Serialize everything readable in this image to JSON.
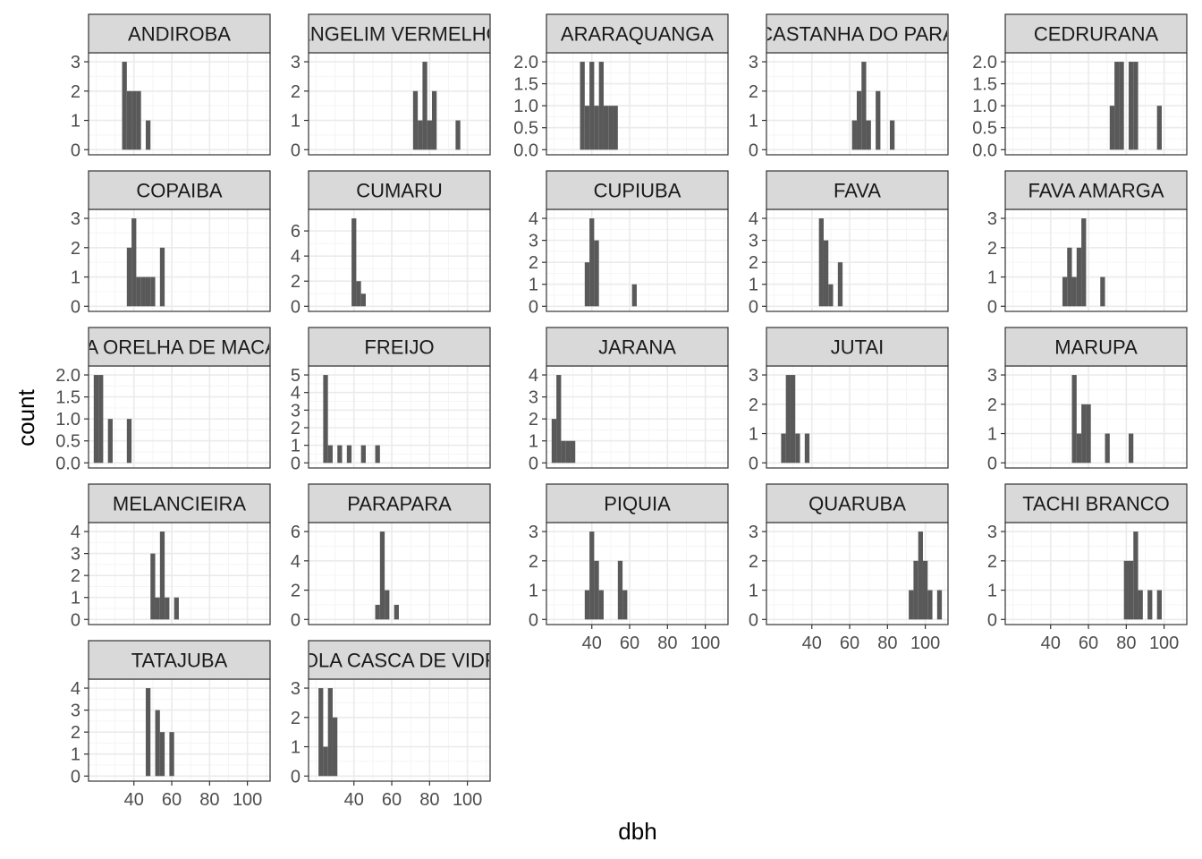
{
  "chart_data": {
    "type": "bar",
    "chart_kind": "faceted-histogram",
    "xlabel": "dbh",
    "ylabel": "count",
    "facet_columns": 5,
    "scales": "free_y",
    "xlim": [
      16,
      112
    ],
    "x_ticks": [
      40,
      60,
      80,
      100
    ],
    "x_tick_labels": [
      "40",
      "60",
      "80",
      "100"
    ],
    "bin_width": 2.5,
    "colors": {
      "bar": "#595959",
      "panel_border": "#333333",
      "strip_fill": "#d9d9d9",
      "grid_major": "#ebebeb",
      "grid_minor": "#f5f5f5"
    },
    "facets": [
      {
        "name": "ANDIROBA",
        "y_ticks": [
          0,
          1,
          2,
          3
        ],
        "y_tick_labels": [
          "0",
          "1",
          "2",
          "3"
        ],
        "ylim": [
          0,
          3.15
        ],
        "bins": [
          {
            "x": 35,
            "count": 3
          },
          {
            "x": 37.5,
            "count": 2
          },
          {
            "x": 40,
            "count": 2
          },
          {
            "x": 42.5,
            "count": 2
          },
          {
            "x": 47.5,
            "count": 1
          }
        ]
      },
      {
        "name": "ANGELIM VERMELHO",
        "y_ticks": [
          0,
          1,
          2,
          3
        ],
        "y_tick_labels": [
          "0",
          "1",
          "2",
          "3"
        ],
        "ylim": [
          0,
          3.15
        ],
        "bins": [
          {
            "x": 72.5,
            "count": 2
          },
          {
            "x": 75,
            "count": 1
          },
          {
            "x": 77.5,
            "count": 3
          },
          {
            "x": 80,
            "count": 1
          },
          {
            "x": 82.5,
            "count": 2
          },
          {
            "x": 95,
            "count": 1
          }
        ]
      },
      {
        "name": "ARARAQUANGA",
        "y_ticks": [
          0,
          0.5,
          1,
          1.5,
          2
        ],
        "y_tick_labels": [
          "0.0",
          "0.5",
          "1.0",
          "1.5",
          "2.0"
        ],
        "ylim": [
          0,
          2.1
        ],
        "bins": [
          {
            "x": 35,
            "count": 2
          },
          {
            "x": 37.5,
            "count": 1
          },
          {
            "x": 40,
            "count": 2
          },
          {
            "x": 42.5,
            "count": 1
          },
          {
            "x": 45,
            "count": 2
          },
          {
            "x": 47.5,
            "count": 1
          },
          {
            "x": 50,
            "count": 1
          },
          {
            "x": 52.5,
            "count": 1
          }
        ]
      },
      {
        "name": "CASTANHA DO PARA",
        "y_ticks": [
          0,
          1,
          2,
          3
        ],
        "y_tick_labels": [
          "0",
          "1",
          "2",
          "3"
        ],
        "ylim": [
          0,
          3.15
        ],
        "bins": [
          {
            "x": 62.5,
            "count": 1
          },
          {
            "x": 65,
            "count": 2
          },
          {
            "x": 67.5,
            "count": 3
          },
          {
            "x": 70,
            "count": 1
          },
          {
            "x": 75,
            "count": 2
          },
          {
            "x": 82.5,
            "count": 1
          }
        ]
      },
      {
        "name": "CEDRURANA",
        "y_ticks": [
          0,
          0.5,
          1,
          1.5,
          2
        ],
        "y_tick_labels": [
          "0.0",
          "0.5",
          "1.0",
          "1.5",
          "2.0"
        ],
        "ylim": [
          0,
          2.1
        ],
        "bins": [
          {
            "x": 72.5,
            "count": 1
          },
          {
            "x": 75,
            "count": 2
          },
          {
            "x": 77.5,
            "count": 2
          },
          {
            "x": 82.5,
            "count": 2
          },
          {
            "x": 85,
            "count": 2
          },
          {
            "x": 97.5,
            "count": 1
          }
        ]
      },
      {
        "name": "COPAIBA",
        "y_ticks": [
          0,
          1,
          2,
          3
        ],
        "y_tick_labels": [
          "0",
          "1",
          "2",
          "3"
        ],
        "ylim": [
          0,
          3.15
        ],
        "bins": [
          {
            "x": 37.5,
            "count": 2
          },
          {
            "x": 40,
            "count": 3
          },
          {
            "x": 42.5,
            "count": 1
          },
          {
            "x": 45,
            "count": 1
          },
          {
            "x": 47.5,
            "count": 1
          },
          {
            "x": 50,
            "count": 1
          },
          {
            "x": 55,
            "count": 2
          }
        ]
      },
      {
        "name": "CUMARU",
        "y_ticks": [
          0,
          2,
          4,
          6
        ],
        "y_tick_labels": [
          "0",
          "2",
          "4",
          "6"
        ],
        "ylim": [
          0,
          7.35
        ],
        "bins": [
          {
            "x": 40,
            "count": 7
          },
          {
            "x": 42.5,
            "count": 2
          },
          {
            "x": 45,
            "count": 1
          }
        ]
      },
      {
        "name": "CUPIUBA",
        "y_ticks": [
          0,
          1,
          2,
          3,
          4
        ],
        "y_tick_labels": [
          "0",
          "1",
          "2",
          "3",
          "4"
        ],
        "ylim": [
          0,
          4.2
        ],
        "bins": [
          {
            "x": 37.5,
            "count": 2
          },
          {
            "x": 40,
            "count": 4
          },
          {
            "x": 42.5,
            "count": 3
          },
          {
            "x": 62.5,
            "count": 1
          }
        ]
      },
      {
        "name": "FAVA",
        "y_ticks": [
          0,
          1,
          2,
          3,
          4
        ],
        "y_tick_labels": [
          "0",
          "1",
          "2",
          "3",
          "4"
        ],
        "ylim": [
          0,
          4.2
        ],
        "bins": [
          {
            "x": 45,
            "count": 4
          },
          {
            "x": 47.5,
            "count": 3
          },
          {
            "x": 50,
            "count": 1
          },
          {
            "x": 55,
            "count": 2
          }
        ]
      },
      {
        "name": "FAVA AMARGA",
        "y_ticks": [
          0,
          1,
          2,
          3
        ],
        "y_tick_labels": [
          "0",
          "1",
          "2",
          "3"
        ],
        "ylim": [
          0,
          3.15
        ],
        "bins": [
          {
            "x": 47.5,
            "count": 1
          },
          {
            "x": 50,
            "count": 2
          },
          {
            "x": 52.5,
            "count": 1
          },
          {
            "x": 55,
            "count": 2
          },
          {
            "x": 57.5,
            "count": 3
          },
          {
            "x": 67.5,
            "count": 1
          }
        ]
      },
      {
        "name": "FAVA ORELHA DE MACACO",
        "y_ticks": [
          0,
          0.5,
          1,
          1.5,
          2
        ],
        "y_tick_labels": [
          "0.0",
          "0.5",
          "1.0",
          "1.5",
          "2.0"
        ],
        "ylim": [
          0,
          2.1
        ],
        "bins": [
          {
            "x": 20,
            "count": 2
          },
          {
            "x": 22.5,
            "count": 2
          },
          {
            "x": 27.5,
            "count": 1
          },
          {
            "x": 37.5,
            "count": 1
          }
        ]
      },
      {
        "name": "FREIJO",
        "y_ticks": [
          0,
          1,
          2,
          3,
          4,
          5
        ],
        "y_tick_labels": [
          "0",
          "1",
          "2",
          "3",
          "4",
          "5"
        ],
        "ylim": [
          0,
          5.25
        ],
        "bins": [
          {
            "x": 25,
            "count": 5
          },
          {
            "x": 27.5,
            "count": 1
          },
          {
            "x": 32.5,
            "count": 1
          },
          {
            "x": 37.5,
            "count": 1
          },
          {
            "x": 45,
            "count": 1
          },
          {
            "x": 52.5,
            "count": 1
          }
        ]
      },
      {
        "name": "JARANA",
        "y_ticks": [
          0,
          1,
          2,
          3,
          4
        ],
        "y_tick_labels": [
          "0",
          "1",
          "2",
          "3",
          "4"
        ],
        "ylim": [
          0,
          4.2
        ],
        "bins": [
          {
            "x": 20,
            "count": 2
          },
          {
            "x": 22.5,
            "count": 4
          },
          {
            "x": 25,
            "count": 1
          },
          {
            "x": 27.5,
            "count": 1
          },
          {
            "x": 30,
            "count": 1
          }
        ]
      },
      {
        "name": "JUTAI",
        "y_ticks": [
          0,
          1,
          2,
          3
        ],
        "y_tick_labels": [
          "0",
          "1",
          "2",
          "3"
        ],
        "ylim": [
          0,
          3.15
        ],
        "bins": [
          {
            "x": 25,
            "count": 1
          },
          {
            "x": 27.5,
            "count": 3
          },
          {
            "x": 30,
            "count": 3
          },
          {
            "x": 32.5,
            "count": 1
          },
          {
            "x": 37.5,
            "count": 1
          }
        ]
      },
      {
        "name": "MARUPA",
        "y_ticks": [
          0,
          1,
          2,
          3
        ],
        "y_tick_labels": [
          "0",
          "1",
          "2",
          "3"
        ],
        "ylim": [
          0,
          3.15
        ],
        "bins": [
          {
            "x": 52.5,
            "count": 3
          },
          {
            "x": 55,
            "count": 1
          },
          {
            "x": 57.5,
            "count": 2
          },
          {
            "x": 60,
            "count": 2
          },
          {
            "x": 70,
            "count": 1
          },
          {
            "x": 82.5,
            "count": 1
          }
        ]
      },
      {
        "name": "MELANCIEIRA",
        "y_ticks": [
          0,
          1,
          2,
          3,
          4
        ],
        "y_tick_labels": [
          "0",
          "1",
          "2",
          "3",
          "4"
        ],
        "ylim": [
          0,
          4.2
        ],
        "bins": [
          {
            "x": 50,
            "count": 3
          },
          {
            "x": 52.5,
            "count": 1
          },
          {
            "x": 55,
            "count": 4
          },
          {
            "x": 57.5,
            "count": 1
          },
          {
            "x": 62.5,
            "count": 1
          }
        ]
      },
      {
        "name": "PARAPARA",
        "y_ticks": [
          0,
          2,
          4,
          6
        ],
        "y_tick_labels": [
          "0",
          "2",
          "4",
          "6"
        ],
        "ylim": [
          0,
          6.3
        ],
        "bins": [
          {
            "x": 52.5,
            "count": 1
          },
          {
            "x": 55,
            "count": 6
          },
          {
            "x": 57.5,
            "count": 2
          },
          {
            "x": 62.5,
            "count": 1
          }
        ]
      },
      {
        "name": "PIQUIA",
        "y_ticks": [
          0,
          1,
          2,
          3
        ],
        "y_tick_labels": [
          "0",
          "1",
          "2",
          "3"
        ],
        "ylim": [
          0,
          3.15
        ],
        "bins": [
          {
            "x": 37.5,
            "count": 1
          },
          {
            "x": 40,
            "count": 3
          },
          {
            "x": 42.5,
            "count": 2
          },
          {
            "x": 45,
            "count": 1
          },
          {
            "x": 55,
            "count": 2
          },
          {
            "x": 57.5,
            "count": 1
          }
        ]
      },
      {
        "name": "QUARUBA",
        "y_ticks": [
          0,
          1,
          2,
          3
        ],
        "y_tick_labels": [
          "0",
          "1",
          "2",
          "3"
        ],
        "ylim": [
          0,
          3.15
        ],
        "bins": [
          {
            "x": 92.5,
            "count": 1
          },
          {
            "x": 95,
            "count": 2
          },
          {
            "x": 97.5,
            "count": 3
          },
          {
            "x": 100,
            "count": 2
          },
          {
            "x": 102.5,
            "count": 1
          },
          {
            "x": 107.5,
            "count": 1
          }
        ]
      },
      {
        "name": "TACHI BRANCO",
        "y_ticks": [
          0,
          1,
          2,
          3
        ],
        "y_tick_labels": [
          "0",
          "1",
          "2",
          "3"
        ],
        "ylim": [
          0,
          3.15
        ],
        "bins": [
          {
            "x": 80,
            "count": 2
          },
          {
            "x": 82.5,
            "count": 2
          },
          {
            "x": 85,
            "count": 3
          },
          {
            "x": 87.5,
            "count": 1
          },
          {
            "x": 92.5,
            "count": 1
          },
          {
            "x": 97.5,
            "count": 1
          }
        ]
      },
      {
        "name": "TATAJUBA",
        "y_ticks": [
          0,
          1,
          2,
          3,
          4
        ],
        "y_tick_labels": [
          "0",
          "1",
          "2",
          "3",
          "4"
        ],
        "ylim": [
          0,
          4.2
        ],
        "bins": [
          {
            "x": 47.5,
            "count": 4
          },
          {
            "x": 52.5,
            "count": 3
          },
          {
            "x": 55,
            "count": 2
          },
          {
            "x": 60,
            "count": 2
          }
        ]
      },
      {
        "name": "VIOLA CASCA DE VIDRO",
        "y_ticks": [
          0,
          1,
          2,
          3
        ],
        "y_tick_labels": [
          "0",
          "1",
          "2",
          "3"
        ],
        "ylim": [
          0,
          3.15
        ],
        "bins": [
          {
            "x": 22.5,
            "count": 3
          },
          {
            "x": 25,
            "count": 1
          },
          {
            "x": 27.5,
            "count": 3
          },
          {
            "x": 30,
            "count": 2
          }
        ]
      }
    ]
  }
}
